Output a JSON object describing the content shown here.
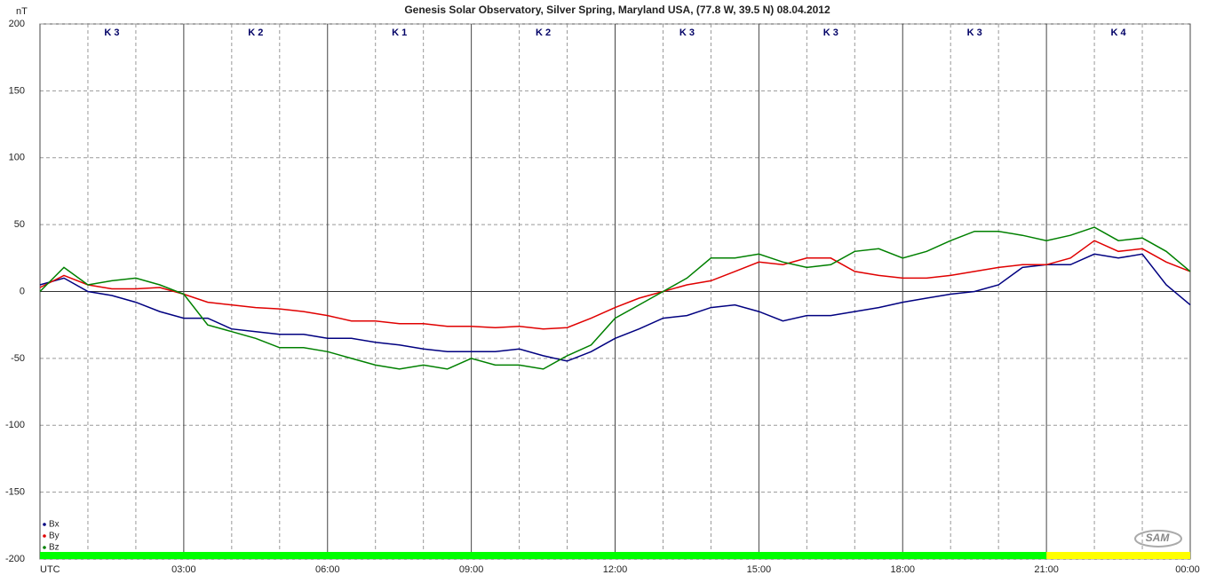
{
  "chart_data": {
    "type": "line",
    "title": "Genesis Solar Observatory, Silver Spring, Maryland USA, (77.8 W, 39.5 N)  08.04.2012",
    "y_label": "nT",
    "logo": "SAM",
    "x": [
      0,
      0.5,
      1,
      1.5,
      2,
      2.5,
      3,
      3.5,
      4,
      4.5,
      5,
      5.5,
      6,
      6.5,
      7,
      7.5,
      8,
      8.5,
      9,
      9.5,
      10,
      10.5,
      11,
      11.5,
      12,
      12.5,
      13,
      13.5,
      14,
      14.5,
      15,
      15.5,
      16,
      16.5,
      17,
      17.5,
      18,
      18.5,
      19,
      19.5,
      20,
      20.5,
      21,
      21.5,
      22,
      22.5,
      23,
      23.5,
      24
    ],
    "series": [
      {
        "name": "Bx",
        "color": "#000080",
        "values": [
          5,
          10,
          0,
          -3,
          -8,
          -15,
          -20,
          -20,
          -28,
          -30,
          -32,
          -32,
          -35,
          -35,
          -38,
          -40,
          -43,
          -45,
          -45,
          -45,
          -43,
          -48,
          -52,
          -45,
          -35,
          -28,
          -20,
          -18,
          -12,
          -10,
          -15,
          -22,
          -18,
          -18,
          -15,
          -12,
          -8,
          -5,
          -2,
          0,
          5,
          18,
          20,
          20,
          28,
          25,
          28,
          5,
          -10
        ]
      },
      {
        "name": "By",
        "color": "#e00000",
        "values": [
          3,
          12,
          5,
          2,
          2,
          3,
          -2,
          -8,
          -10,
          -12,
          -13,
          -15,
          -18,
          -22,
          -22,
          -24,
          -24,
          -26,
          -26,
          -27,
          -26,
          -28,
          -27,
          -20,
          -12,
          -5,
          0,
          5,
          8,
          15,
          22,
          20,
          25,
          25,
          15,
          12,
          10,
          10,
          12,
          15,
          18,
          20,
          20,
          25,
          38,
          30,
          32,
          22,
          15
        ]
      },
      {
        "name": "Bz",
        "color": "#008000",
        "values": [
          0,
          18,
          5,
          8,
          10,
          5,
          -2,
          -25,
          -30,
          -35,
          -42,
          -42,
          -45,
          -50,
          -55,
          -58,
          -55,
          -58,
          -50,
          -55,
          -55,
          -58,
          -48,
          -40,
          -20,
          -10,
          0,
          10,
          25,
          25,
          28,
          22,
          18,
          20,
          30,
          32,
          25,
          30,
          38,
          45,
          45,
          42,
          38,
          42,
          48,
          38,
          40,
          30,
          15
        ]
      }
    ],
    "xlim": [
      0,
      24
    ],
    "xticks": [
      {
        "value": 0,
        "label": "UTC"
      },
      {
        "value": 3,
        "label": "03:00"
      },
      {
        "value": 6,
        "label": "06:00"
      },
      {
        "value": 9,
        "label": "09:00"
      },
      {
        "value": 12,
        "label": "12:00"
      },
      {
        "value": 15,
        "label": "15:00"
      },
      {
        "value": 18,
        "label": "18:00"
      },
      {
        "value": 21,
        "label": "21:00"
      },
      {
        "value": 24,
        "label": "00:00"
      }
    ],
    "minor_xticks": [
      1,
      2,
      4,
      5,
      7,
      8,
      10,
      11,
      13,
      14,
      16,
      17,
      19,
      20,
      22,
      23
    ],
    "ylim": [
      -200,
      200
    ],
    "yticks": [
      -200,
      -150,
      -100,
      -50,
      0,
      50,
      100,
      150,
      200
    ],
    "grid": true,
    "k_indices": [
      "K 3",
      "K 2",
      "K 1",
      "K 2",
      "K 3",
      "K 3",
      "K 3",
      "K 4"
    ],
    "status_bar": [
      {
        "from": 0,
        "to": 21,
        "color": "#00ff00"
      },
      {
        "from": 21,
        "to": 24,
        "color": "#ffff00"
      }
    ],
    "legend": "lower left"
  }
}
